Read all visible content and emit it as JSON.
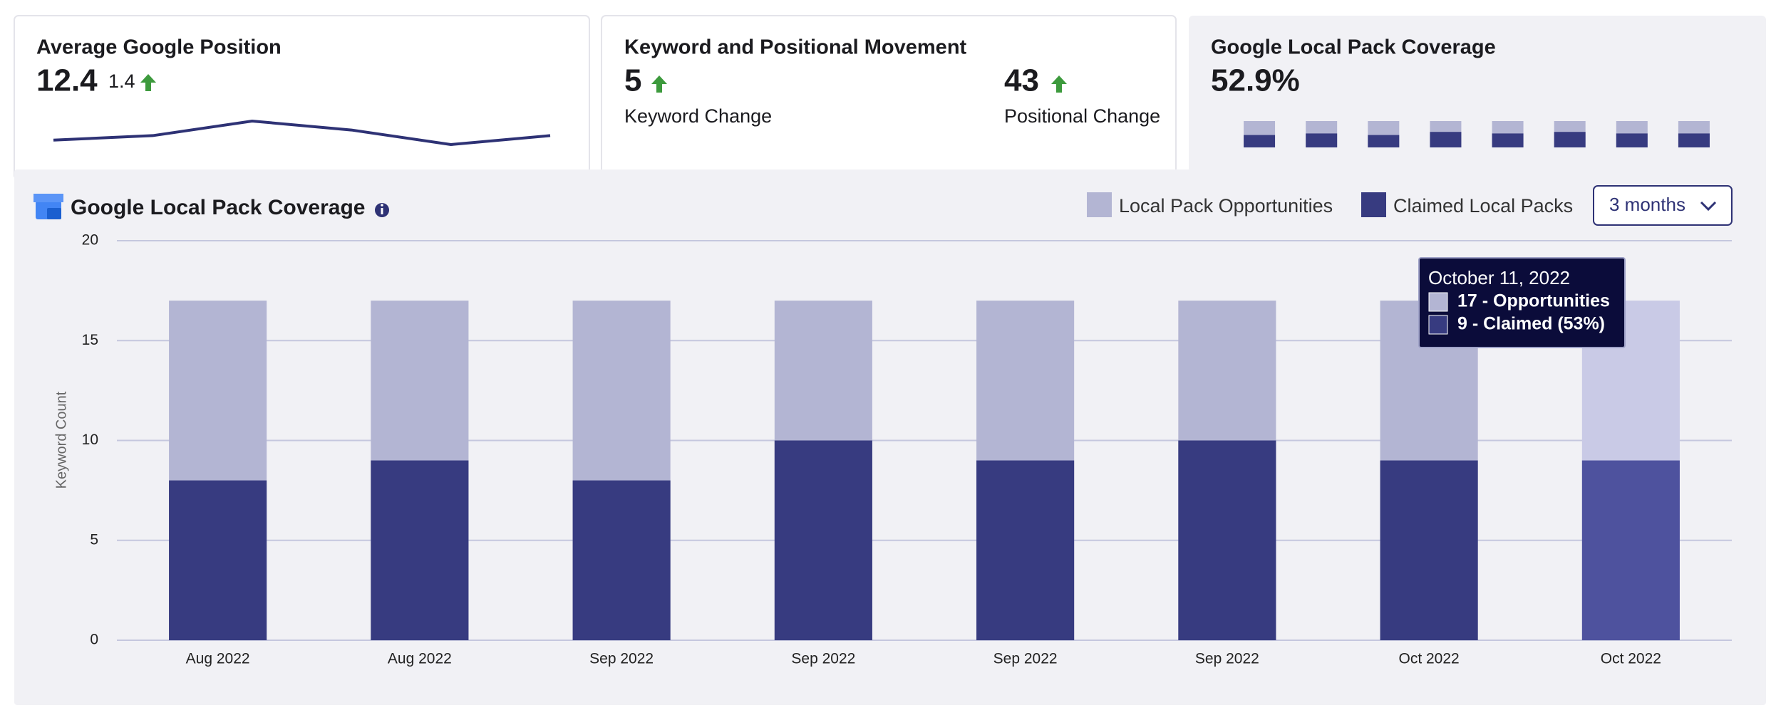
{
  "cards": [
    {
      "title": "Average Google Position",
      "value": 12.4,
      "change": 1.4
    },
    {
      "title": "Keyword and Positional Movement",
      "metrics": [
        {
          "value": 5,
          "label": "Keyword Change"
        },
        {
          "value": 43,
          "label": "Positional Change"
        }
      ]
    },
    {
      "title": "Google Local Pack Coverage",
      "value": "52.9%"
    }
  ],
  "chart_data": [
    {
      "type": "line",
      "values": [
        3.9,
        4.3,
        5.6,
        4.8,
        3.5,
        4.3
      ],
      "color": "#2e3275"
    },
    {
      "type": "bar",
      "series": [
        {
          "color": "#b3b5d3",
          "values": [
            17,
            17,
            17,
            17,
            17,
            17,
            17,
            17
          ]
        },
        {
          "color": "#373b80",
          "values": [
            8,
            9,
            8,
            10,
            9,
            10,
            9,
            9
          ]
        }
      ]
    },
    {
      "type": "bar",
      "title": "Google Local Pack Coverage",
      "y_label": "Keyword Count",
      "categories": [
        "Aug 2022",
        "Aug 2022",
        "Sep 2022",
        "Sep 2022",
        "Sep 2022",
        "Sep 2022",
        "Oct 2022",
        "Oct 2022"
      ],
      "series": [
        {
          "name": "Local Pack Opportunities",
          "color": "#b3b5d3",
          "values": [
            17,
            17,
            17,
            17,
            17,
            17,
            17,
            17
          ]
        },
        {
          "name": "Claimed Local Packs",
          "color": "#373b80",
          "values": [
            8,
            9,
            8,
            10,
            9,
            10,
            9,
            9
          ]
        }
      ],
      "ylim": [
        0,
        20
      ],
      "yticks": [
        0,
        5,
        10,
        15,
        20
      ],
      "grid": true,
      "legend": "top-right",
      "highlight_index": 7,
      "highlight_colors": [
        "#c9cae6",
        "#4e529e"
      ],
      "range_select": "3 months",
      "tooltip": {
        "date": "October 11, 2022",
        "rows": [
          "17 - Opportunities",
          "9 - Claimed (53%)"
        ]
      }
    }
  ]
}
